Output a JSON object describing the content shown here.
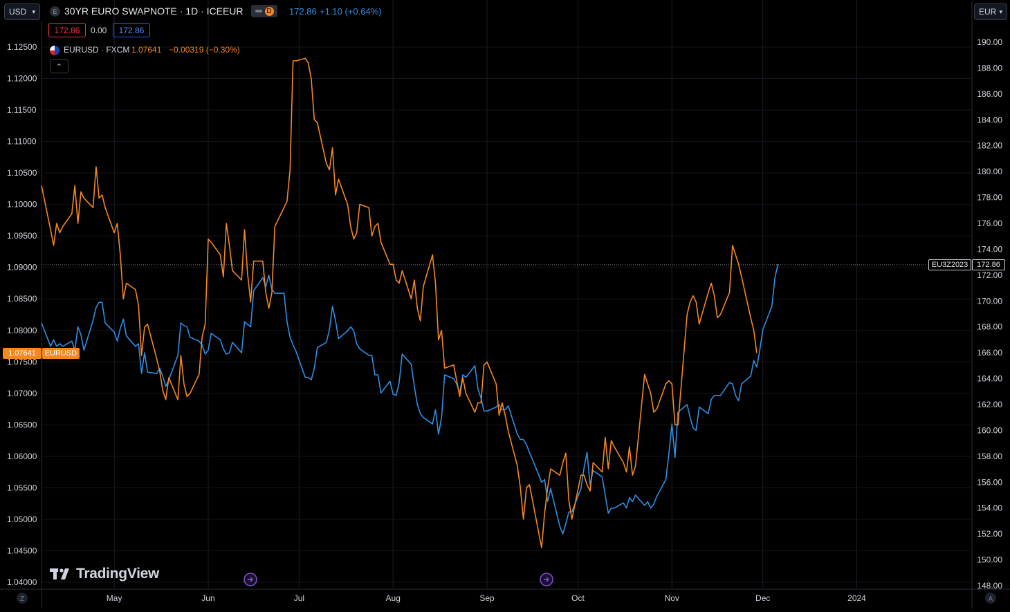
{
  "header": {
    "left_currency": "USD",
    "right_currency": "EUR",
    "symbol_title": "30YR EURO SWAPNOTE · 1D · ICEEUR",
    "symbol_badge_e": "E",
    "symbol_badge_d": "D",
    "main_price": "172.86",
    "main_change": "+1.10 (+0.64%)",
    "bid": "172.86",
    "spread": "0.00",
    "ask": "172.86",
    "compare_symbol": "EURUSD · FXCM",
    "compare_price": "1.07641",
    "compare_change": "−0.00319 (−0.30%)",
    "collapse_glyph": "⌃"
  },
  "axes": {
    "left_ticks": [
      "1.12500",
      "1.12000",
      "1.11500",
      "1.11000",
      "1.10500",
      "1.10000",
      "1.09500",
      "1.09000",
      "1.08500",
      "1.08000",
      "1.07500",
      "1.07000",
      "1.06500",
      "1.06000",
      "1.05500",
      "1.05000",
      "1.04500",
      "1.04000"
    ],
    "right_ticks": [
      "190.00",
      "188.00",
      "186.00",
      "184.00",
      "182.00",
      "180.00",
      "178.00",
      "176.00",
      "174.00",
      "172.00",
      "170.00",
      "168.00",
      "166.00",
      "164.00",
      "162.00",
      "160.00",
      "158.00",
      "156.00",
      "154.00",
      "152.00",
      "150.00",
      "148.00"
    ],
    "x_ticks": [
      "May",
      "Jun",
      "Jul",
      "Aug",
      "Sep",
      "Oct",
      "Nov",
      "Dec",
      "2024"
    ],
    "left_corner": "Z",
    "right_corner": "A"
  },
  "labels": {
    "eurusd_price": "1.07641",
    "eurusd_name": "EURUSD",
    "swap_name": "EU3Z2023",
    "swap_price": "172.86"
  },
  "watermark": "TradingView",
  "colors": {
    "swapnote": "#2f8fe6",
    "eurusd": "#f5881f",
    "bid": "#f23645",
    "ask": "#2962ff",
    "event": "#7e57c2"
  },
  "chart_data": {
    "type": "line",
    "x_axis": "date",
    "series": [
      {
        "name": "30YR EURO SWAPNOTE",
        "axis": "right",
        "ylim": [
          148,
          190
        ],
        "values": [
          168.3,
          166.5,
          167.0,
          166.5,
          166.7,
          166.5,
          166.9,
          166.2,
          168.0,
          167.4,
          166.2,
          168.5,
          169.5,
          169.9,
          169.9,
          168.3,
          167.6,
          166.9,
          167.9,
          168.6,
          167.3,
          166.5,
          166.7,
          164.4,
          166.0,
          164.5,
          164.4,
          164.8,
          164.2,
          163.4,
          163.9,
          165.8,
          168.3,
          168.1,
          168.0,
          167.2,
          166.9,
          166.6,
          165.9,
          166.2,
          167.5,
          167.0,
          166.3,
          165.9,
          166.0,
          166.8,
          166.0,
          168.4,
          168.2,
          168.0,
          170.8,
          171.8,
          171.1,
          172.0,
          170.9,
          170.6,
          170.6,
          168.4,
          167.2,
          166.6,
          166.1,
          164.1,
          164.1,
          163.9,
          164.8,
          166.4,
          166.8,
          167.8,
          169.6,
          168.5,
          167.1,
          167.7,
          168.0,
          167.7,
          166.7,
          166.3,
          165.8,
          165.8,
          164.3,
          164.3,
          162.9,
          163.8,
          162.8,
          162.7,
          163.7,
          165.9,
          165.1,
          163.4,
          162.0,
          161.3,
          161.0,
          160.5,
          161.6,
          159.7,
          161.0,
          164.3,
          164.0,
          163.6,
          162.9,
          164.3,
          164.1,
          165.0,
          163.2,
          162.5,
          161.5,
          161.5,
          161.8,
          162.0,
          161.6,
          161.6,
          161.9,
          159.7,
          159.3,
          159.3,
          158.9,
          158.3,
          156.6,
          156.0,
          156.2,
          154.5,
          155.5,
          152.6,
          152.0,
          152.8,
          153.7,
          153.7,
          155.5,
          157.1,
          158.3,
          155.8,
          156.9,
          156.4,
          155.0,
          153.6,
          154.0,
          154.0,
          154.4,
          154.0,
          154.8,
          154.5,
          155.0,
          154.2,
          154.5,
          154.0,
          154.3,
          154.9,
          156.2,
          158.2,
          160.5,
          157.9,
          161.4,
          162.0,
          161.0,
          160.2,
          160.0,
          161.8,
          161.3,
          162.4,
          162.7,
          162.7,
          162.7,
          163.7,
          163.6,
          162.7,
          162.3,
          163.6,
          164.2,
          165.4,
          164.9,
          166.2,
          167.8,
          169.6,
          171.8,
          172.86
        ]
      },
      {
        "name": "EURUSD",
        "axis": "left",
        "ylim": [
          1.04,
          1.128
        ],
        "values": [
          1.103,
          1.096,
          1.0935,
          1.097,
          1.0955,
          1.0965,
          1.0985,
          1.103,
          1.097,
          1.102,
          1.101,
          1.0995,
          1.106,
          1.101,
          1.1015,
          1.0995,
          1.0955,
          1.097,
          1.092,
          1.085,
          1.0875,
          1.0865,
          1.084,
          1.076,
          1.0805,
          1.081,
          1.0755,
          1.0735,
          1.0705,
          1.069,
          1.0725,
          1.069,
          1.076,
          1.0715,
          1.0695,
          1.07,
          1.073,
          1.079,
          1.081,
          1.0945,
          1.094,
          1.092,
          1.0885,
          1.097,
          1.0935,
          1.0895,
          1.088,
          1.096,
          1.089,
          1.0845,
          1.091,
          1.091,
          1.086,
          1.0835,
          1.086,
          1.0965,
          1.0995,
          1.1005,
          1.1055,
          1.1228,
          1.1228,
          1.1232,
          1.1225,
          1.12,
          1.1135,
          1.113,
          1.1065,
          1.1055,
          1.109,
          1.1015,
          1.104,
          1.1,
          1.0965,
          1.0945,
          1.0955,
          1.1,
          1.0995,
          1.095,
          1.0965,
          1.097,
          1.094,
          1.0905,
          1.0905,
          1.088,
          1.0875,
          1.0895,
          1.085,
          1.088,
          1.0835,
          1.0815,
          1.087,
          1.092,
          1.0875,
          1.0785,
          1.08,
          1.074,
          1.0745,
          1.072,
          1.0695,
          1.0725,
          1.07,
          1.067,
          1.0685,
          1.0685,
          1.0745,
          1.075,
          1.0715,
          1.0665,
          1.0685,
          1.0665,
          1.064,
          1.0585,
          1.055,
          1.05,
          1.055,
          1.0555,
          1.048,
          1.0455,
          1.051,
          1.055,
          1.058,
          1.057,
          1.059,
          1.0605,
          1.053,
          1.05,
          1.057,
          1.057,
          1.0555,
          1.0545,
          1.059,
          1.0575,
          1.063,
          1.058,
          1.0625,
          1.0615,
          1.059,
          1.0575,
          1.0615,
          1.057,
          1.0585,
          1.073,
          1.0715,
          1.07,
          1.067,
          1.0675,
          1.0715,
          1.072,
          1.0715,
          1.065,
          1.065,
          1.0825,
          1.0845,
          1.0855,
          1.0845,
          1.081,
          1.086,
          1.0875,
          1.0855,
          1.082,
          1.0825,
          1.086,
          1.0935,
          1.092,
          1.0905,
          1.0885,
          1.082,
          1.08,
          1.0764
        ]
      }
    ],
    "xlim": [
      "2023-04-07",
      "2024-02-08"
    ],
    "grid": true
  }
}
